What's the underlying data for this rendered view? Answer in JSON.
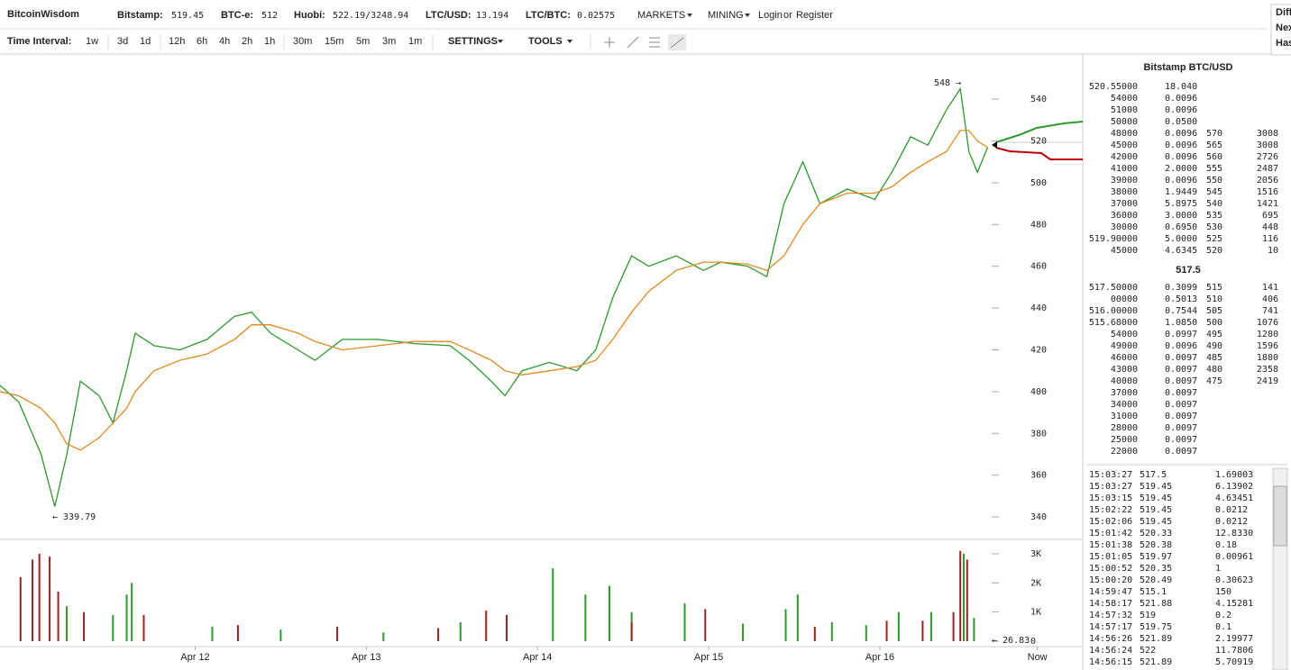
{
  "header": {
    "logo": "BitcoinWisdom",
    "tickers": [
      {
        "label": "Bitstamp:",
        "value": "519.45",
        "color": "#f08c00"
      },
      {
        "label": "BTC-e:",
        "value": "512",
        "color": "#2a7fd4"
      },
      {
        "label": "Huobi:",
        "value": "522.19/3248.94",
        "color": "#2a7fd4"
      },
      {
        "label": "LTC/USD:",
        "value": "13.194",
        "color": "#2a7fd4"
      },
      {
        "label": "LTC/BTC:",
        "value": "0.02575",
        "color": "#2a7fd4"
      }
    ],
    "menus": [
      "MARKETS",
      "MINING"
    ],
    "login": "Login",
    "or": "or",
    "register": "Register",
    "side_box": [
      "Diff",
      "Nex",
      "Has"
    ]
  },
  "toolbar": {
    "label": "Time Interval:",
    "intervals": [
      {
        "label": "1w",
        "color": "#2a7fd4"
      },
      {
        "label": "3d",
        "color": "#2a7fd4"
      },
      {
        "label": "1d",
        "color": "#2a7fd4"
      },
      {
        "label": "12h",
        "color": "#2a7fd4"
      },
      {
        "label": "6h",
        "color": "#2a7fd4"
      },
      {
        "label": "4h",
        "color": "#2a7fd4"
      },
      {
        "label": "2h",
        "color": "#2a7fd4"
      },
      {
        "label": "1h",
        "color": "#2a7fd4"
      },
      {
        "label": "30m",
        "color": "#2a7fd4"
      },
      {
        "label": "15m",
        "color": "#f08c00"
      },
      {
        "label": "5m",
        "color": "#2a7fd4"
      },
      {
        "label": "3m",
        "color": "#2a7fd4"
      },
      {
        "label": "1m",
        "color": "#2a7fd4"
      }
    ],
    "settings": "SETTINGS",
    "tools": "TOOLS"
  },
  "chart_data": [
    {
      "type": "line",
      "xlim": [
        10.86,
        17.18
      ],
      "ylim": [
        329.7,
        561.6
      ],
      "yticks": [
        340,
        360,
        380,
        400,
        420,
        440,
        460,
        480,
        500,
        520,
        540
      ],
      "xticks": [
        {
          "value": 12,
          "label": "Apr 12"
        },
        {
          "value": 13,
          "label": "Apr 13"
        },
        {
          "value": 14,
          "label": "Apr 14"
        },
        {
          "value": 15,
          "label": "Apr 15"
        },
        {
          "value": 16,
          "label": "Apr 16"
        },
        {
          "value": 16.92,
          "label": "Now"
        }
      ],
      "annotations": [
        "548 →",
        "← 339.79"
      ],
      "series": [
        {
          "color": "#2a9a2a",
          "x": [
            10.86,
            10.97,
            11.1,
            11.18,
            11.25,
            11.33,
            11.44,
            11.52,
            11.6,
            11.65,
            11.76,
            11.91,
            12.07,
            12.23,
            12.33,
            12.44,
            12.6,
            12.7,
            12.86,
            13.07,
            13.28,
            13.49,
            13.6,
            13.73,
            13.81,
            13.91,
            14.07,
            14.23,
            14.34,
            14.44,
            14.55,
            14.65,
            14.81,
            14.97,
            15.07,
            15.23,
            15.34,
            15.44,
            15.55,
            15.65,
            15.81,
            15.97,
            16.07,
            16.18,
            16.28,
            16.39,
            16.47,
            16.52,
            16.57,
            16.63
          ],
          "values": [
            403,
            395,
            370,
            345,
            370,
            405,
            398,
            385,
            410,
            428,
            422,
            420,
            425,
            436,
            438,
            428,
            420,
            415,
            425,
            425,
            423,
            422,
            415,
            405,
            398,
            410,
            414,
            410,
            420,
            445,
            465,
            460,
            465,
            458,
            462,
            460,
            455,
            490,
            510,
            490,
            497,
            492,
            505,
            522,
            518,
            535,
            545,
            515,
            505,
            517
          ]
        },
        {
          "color": "#e08a1e",
          "x": [
            10.86,
            10.97,
            11.1,
            11.18,
            11.25,
            11.33,
            11.44,
            11.52,
            11.6,
            11.65,
            11.76,
            11.91,
            12.07,
            12.23,
            12.33,
            12.44,
            12.6,
            12.7,
            12.86,
            13.07,
            13.28,
            13.49,
            13.6,
            13.73,
            13.81,
            13.91,
            14.07,
            14.23,
            14.34,
            14.44,
            14.55,
            14.65,
            14.81,
            14.97,
            15.07,
            15.23,
            15.34,
            15.44,
            15.55,
            15.65,
            15.81,
            15.97,
            16.07,
            16.18,
            16.28,
            16.39,
            16.47,
            16.52,
            16.57,
            16.63
          ],
          "values": [
            400,
            398,
            392,
            385,
            375,
            372,
            378,
            385,
            392,
            400,
            410,
            415,
            418,
            425,
            432,
            432,
            428,
            424,
            420,
            422,
            424,
            424,
            420,
            415,
            410,
            408,
            410,
            412,
            415,
            425,
            438,
            448,
            458,
            462,
            462,
            461,
            458,
            465,
            480,
            490,
            495,
            495,
            498,
            505,
            510,
            515,
            525,
            525,
            520,
            517
          ]
        }
      ]
    },
    {
      "type": "bar",
      "xlim": [
        10.86,
        17.18
      ],
      "ylim": [
        0,
        3460
      ],
      "yticks": [
        {
          "value": 0,
          "label": "0"
        },
        {
          "value": 1000,
          "label": "1K"
        },
        {
          "value": 2000,
          "label": "2K"
        },
        {
          "value": 3000,
          "label": "3K"
        }
      ],
      "annotations": [
        "← 26.83"
      ],
      "series": [
        {
          "color": "#2a9a2a",
          "x": [
            11.25,
            11.52,
            11.6,
            11.63,
            12.1,
            12.5,
            13.1,
            13.55,
            14.09,
            14.28,
            14.42,
            14.55,
            14.86,
            15.2,
            15.45,
            15.52,
            15.72,
            15.92,
            16.11,
            16.3,
            16.49,
            16.55
          ],
          "values": [
            1200,
            900,
            1600,
            2000,
            500,
            400,
            300,
            650,
            2500,
            1600,
            1900,
            1000,
            1300,
            600,
            1100,
            1600,
            650,
            550,
            1000,
            1000,
            3000,
            800
          ]
        },
        {
          "color": "#a02020",
          "x": [
            10.98,
            11.05,
            11.09,
            11.15,
            11.2,
            11.35,
            11.7,
            12.25,
            12.83,
            13.42,
            13.7,
            13.82,
            14.55,
            14.98,
            15.62,
            16.04,
            16.25,
            16.43,
            16.47,
            16.51
          ],
          "values": [
            2200,
            2800,
            3000,
            2900,
            1700,
            1000,
            900,
            550,
            500,
            450,
            1050,
            900,
            650,
            1100,
            500,
            700,
            700,
            1000,
            3100,
            2800
          ]
        }
      ]
    }
  ],
  "orderbook": {
    "title": "Bitstamp BTC/USD",
    "last": "517.5",
    "asks": [
      [
        "520.55000",
        "18.040",
        "",
        ""
      ],
      [
        "54000",
        "0.0096",
        "",
        ""
      ],
      [
        "51000",
        "0.0096",
        "",
        ""
      ],
      [
        "50000",
        "0.0500",
        "",
        ""
      ],
      [
        "48000",
        "0.0096",
        "570",
        "3008"
      ],
      [
        "45000",
        "0.0096",
        "565",
        "3008"
      ],
      [
        "42000",
        "0.0096",
        "560",
        "2726"
      ],
      [
        "41000",
        "2.0000",
        "555",
        "2487"
      ],
      [
        "39000",
        "0.0096",
        "550",
        "2056"
      ],
      [
        "38000",
        "1.9449",
        "545",
        "1516"
      ],
      [
        "37000",
        "5.8975",
        "540",
        "1421"
      ],
      [
        "36000",
        "3.0000",
        "535",
        "695"
      ],
      [
        "30000",
        "0.6950",
        "530",
        "448"
      ],
      [
        "519.90000",
        "5.0000",
        "525",
        "116"
      ],
      [
        "45000",
        "4.6345",
        "520",
        "10"
      ]
    ],
    "bids": [
      [
        "517.50000",
        "0.3099",
        "515",
        "141"
      ],
      [
        "00000",
        "0.5013",
        "510",
        "406"
      ],
      [
        "516.00000",
        "0.7544",
        "505",
        "741"
      ],
      [
        "515.68000",
        "1.0850",
        "500",
        "1076"
      ],
      [
        "54000",
        "0.0997",
        "495",
        "1280"
      ],
      [
        "49000",
        "0.0096",
        "490",
        "1596"
      ],
      [
        "46000",
        "0.0097",
        "485",
        "1880"
      ],
      [
        "43000",
        "0.0097",
        "480",
        "2358"
      ],
      [
        "40000",
        "0.0097",
        "475",
        "2419"
      ],
      [
        "37000",
        "0.0097",
        "",
        ""
      ],
      [
        "34000",
        "0.0097",
        "",
        ""
      ],
      [
        "31000",
        "0.0097",
        "",
        ""
      ],
      [
        "28000",
        "0.0097",
        "",
        ""
      ],
      [
        "25000",
        "0.0097",
        "",
        ""
      ],
      [
        "22000",
        "0.0097",
        "",
        ""
      ]
    ]
  },
  "trades": [
    {
      "time": "15:03:27",
      "price": "517.5",
      "amount": "1.69003",
      "color": "#c00000"
    },
    {
      "time": "15:03:27",
      "price": "519.45",
      "amount": "6.13902",
      "color": "#2a8a2a"
    },
    {
      "time": "15:03:15",
      "price": "519.45",
      "amount": "4.63451",
      "color": "#2a8a2a"
    },
    {
      "time": "15:02:22",
      "price": "519.45",
      "amount": "0.0212",
      "color": "#2a8a2a"
    },
    {
      "time": "15:02:06",
      "price": "519.45",
      "amount": "0.0212",
      "color": "#2a8a2a"
    },
    {
      "time": "15:01:42",
      "price": "520.33",
      "amount": "12.8330",
      "color": "#c00000"
    },
    {
      "time": "15:01:38",
      "price": "520.38",
      "amount": "0.18",
      "color": "#2a8a2a"
    },
    {
      "time": "15:01:05",
      "price": "519.97",
      "amount": "0.00961",
      "color": "#c00000"
    },
    {
      "time": "15:00:52",
      "price": "520.35",
      "amount": "1",
      "color": "#c00000"
    },
    {
      "time": "15:00:20",
      "price": "520.49",
      "amount": "0.30623",
      "color": "#2a8a2a"
    },
    {
      "time": "14:59:47",
      "price": "515.1",
      "amount": "150",
      "color": "#c00000"
    },
    {
      "time": "14:58:17",
      "price": "521.88",
      "amount": "4.15281",
      "color": "#2a8a2a"
    },
    {
      "time": "14:57:32",
      "price": "519",
      "amount": "0.2",
      "color": "#c00000"
    },
    {
      "time": "14:57:17",
      "price": "519.75",
      "amount": "0.1",
      "color": "#c00000"
    },
    {
      "time": "14:56:26",
      "price": "521.89",
      "amount": "2.19977",
      "color": "#c00000"
    },
    {
      "time": "14:56:24",
      "price": "522",
      "amount": "11.7806",
      "color": "#c00000"
    },
    {
      "time": "14:56:15",
      "price": "521.89",
      "amount": "5.70919",
      "color": "#2a8a2a"
    }
  ]
}
